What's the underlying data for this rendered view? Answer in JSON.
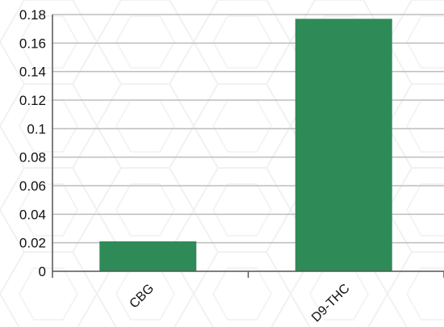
{
  "chart_data": {
    "type": "bar",
    "categories": [
      "CBG",
      "D9-THC"
    ],
    "values": [
      0.021,
      0.177
    ],
    "title": "",
    "xlabel": "",
    "ylabel": "",
    "ylim": [
      0,
      0.18
    ],
    "yticks": [
      "0",
      "0.02",
      "0.04",
      "0.06",
      "0.08",
      "0.1",
      "0.12",
      "0.14",
      "0.16",
      "0.18"
    ],
    "grid": true,
    "legend": "none",
    "bar_color": "#2e8b57",
    "grid_color": "#bdbdbd"
  }
}
